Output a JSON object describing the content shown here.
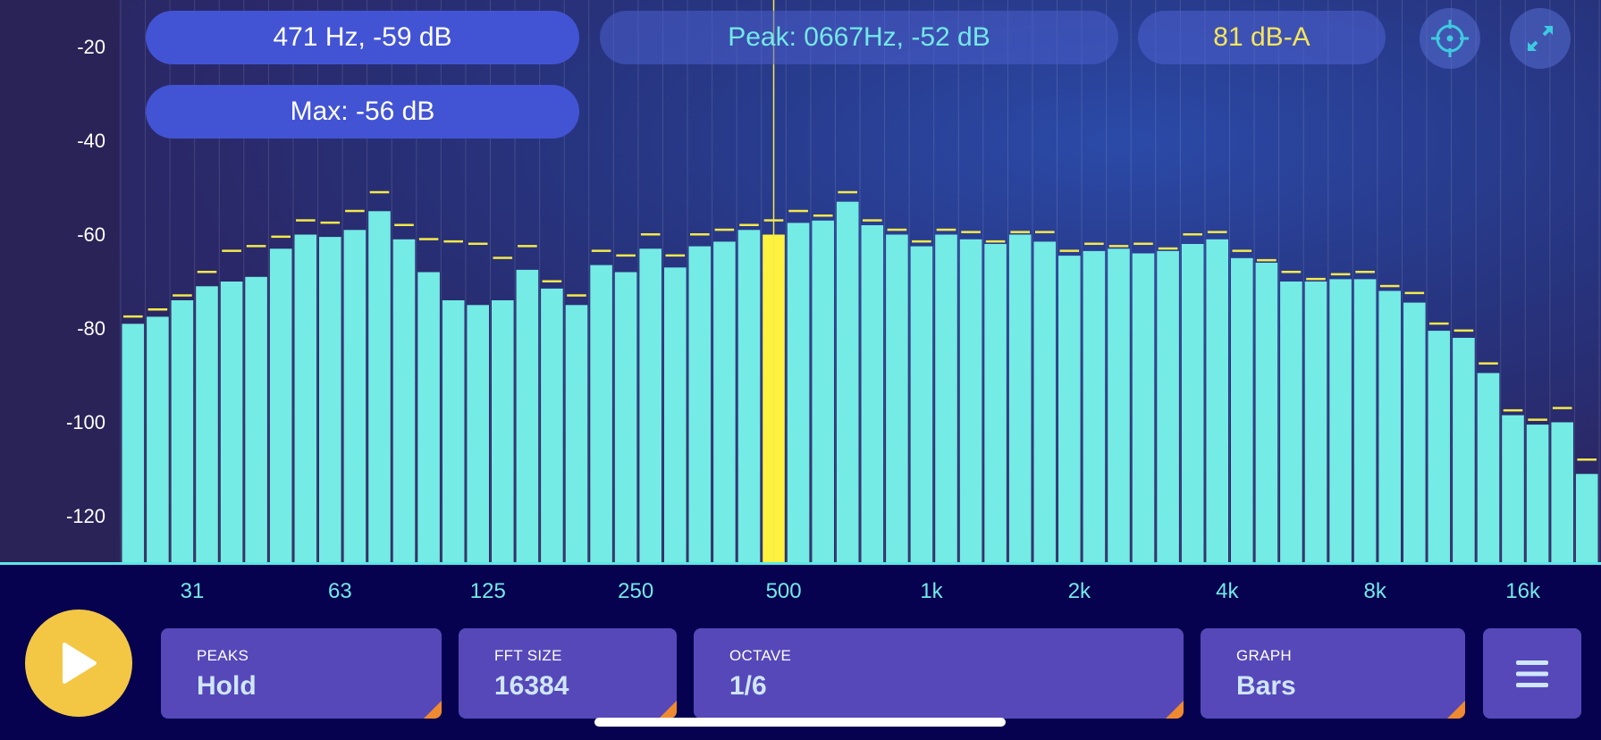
{
  "info": {
    "cursor_readout": "471 Hz, -59 dB",
    "max_readout": "Max: -56 dB",
    "peak_readout": "Peak: 0667Hz, -52 dB",
    "level_readout": "81 dB-A"
  },
  "icons": {
    "target": "crosshair-target-icon",
    "expand": "expand-arrows-icon",
    "play": "play-icon",
    "menu": "hamburger-menu-icon"
  },
  "controls": {
    "peaks": {
      "title": "PEAKS",
      "value": "Hold"
    },
    "fft_size": {
      "title": "FFT SIZE",
      "value": "16384"
    },
    "octave": {
      "title": "OCTAVE",
      "value": "1/6"
    },
    "graph": {
      "title": "GRAPH",
      "value": "Bars"
    }
  },
  "colors": {
    "bar": "#74ebe4",
    "selected_bar": "#fff23e",
    "peak_marker": "#f5e94a",
    "cursor_line": "#f5e94a",
    "play_button": "#f3c744",
    "control_bg": "#5648b9",
    "corner_accent": "#f08a30"
  },
  "chart_data": {
    "type": "bar",
    "y_axis": {
      "min": -130,
      "max": -10,
      "ticks": [
        "-20",
        "-40",
        "-60",
        "-80",
        "-100",
        "-120"
      ],
      "unit": "dB"
    },
    "x_axis": {
      "scale": "log",
      "unit": "Hz",
      "ticks": [
        "31",
        "63",
        "125",
        "250",
        "500",
        "1k",
        "2k",
        "4k",
        "8k",
        "16k"
      ]
    },
    "selected_index": 26,
    "cursor_frequency_hz": 471,
    "series": [
      {
        "name": "level",
        "values": [
          -79,
          -77.5,
          -74,
          -71,
          -70,
          -69,
          -63,
          -60,
          -60.5,
          -59,
          -55,
          -61,
          -68,
          -74,
          -75,
          -74,
          -67.5,
          -71.5,
          -75,
          -66.5,
          -68,
          -63,
          -67,
          -62.5,
          -61.5,
          -59,
          -60,
          -57.5,
          -57,
          -53,
          -58,
          -60,
          -62.5,
          -60,
          -61,
          -62,
          -60,
          -61.5,
          -64.5,
          -63.5,
          -63,
          -64,
          -63.5,
          -62,
          -61,
          -65,
          -66,
          -70,
          -70,
          -69.5,
          -69.5,
          -72,
          -74.5,
          -80.5,
          -82,
          -89.5,
          -98.5,
          -100.5,
          -100,
          -111
        ]
      },
      {
        "name": "peak-hold",
        "values": [
          -77.5,
          -76,
          -73,
          -68,
          -63.5,
          -62.5,
          -60.5,
          -57,
          -57.5,
          -55,
          -51,
          -58,
          -61,
          -61.5,
          -62,
          -65,
          -62.5,
          -70,
          -73,
          -63.5,
          -64.5,
          -60,
          -64.5,
          -60,
          -59,
          -58,
          -57,
          -55,
          -56,
          -51,
          -57,
          -59,
          -61.5,
          -59,
          -59.5,
          -61.5,
          -59.5,
          -59.5,
          -63.5,
          -62,
          -62.5,
          -62,
          -63,
          -60,
          -59.5,
          -63.5,
          -65.5,
          -68,
          -69.5,
          -68.5,
          -68,
          -71,
          -72.5,
          -79,
          -80.5,
          -87.5,
          -97.5,
          -99.5,
          -97,
          -108
        ]
      }
    ]
  }
}
